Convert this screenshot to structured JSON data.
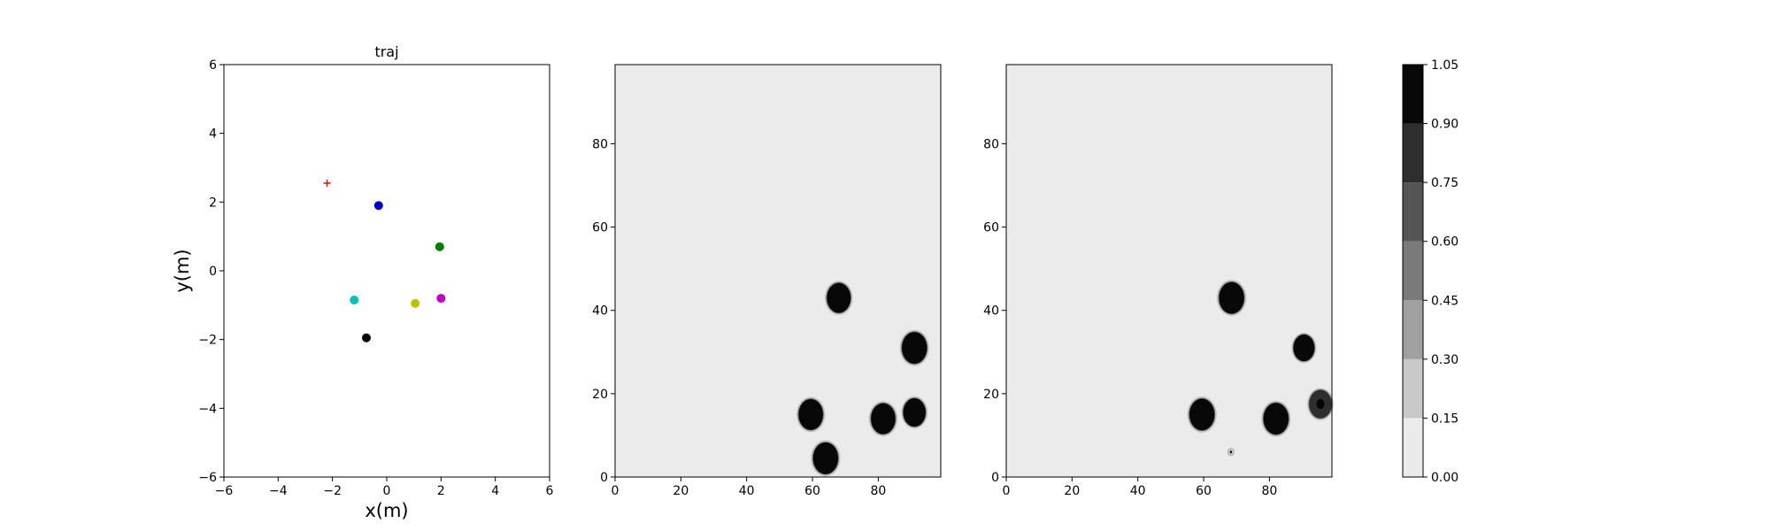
{
  "chart_data": [
    {
      "type": "scatter",
      "title": "traj",
      "xlabel": "x(m)",
      "ylabel": "y(m)",
      "xlim": [
        -6,
        6
      ],
      "ylim": [
        -6,
        6
      ],
      "xticks": [
        "−6",
        "−4",
        "−2",
        "0",
        "2",
        "4",
        "6"
      ],
      "yticks": [
        "−6",
        "−4",
        "−2",
        "0",
        "2",
        "4",
        "6"
      ],
      "grid": false,
      "points": [
        {
          "x": -2.2,
          "y": 2.55,
          "color": "#ff0000",
          "marker": "plus"
        },
        {
          "x": -0.3,
          "y": 1.9,
          "color": "#0000cc",
          "marker": "circle"
        },
        {
          "x": 1.95,
          "y": 0.7,
          "color": "#007f00",
          "marker": "circle"
        },
        {
          "x": -1.2,
          "y": -0.85,
          "color": "#00bfbf",
          "marker": "circle"
        },
        {
          "x": 1.05,
          "y": -0.95,
          "color": "#bfbf00",
          "marker": "circle"
        },
        {
          "x": 2.0,
          "y": -0.8,
          "color": "#bf00bf",
          "marker": "circle"
        },
        {
          "x": -0.75,
          "y": -1.95,
          "color": "#000000",
          "marker": "circle"
        }
      ]
    },
    {
      "type": "heatmap",
      "xlim": [
        0,
        99
      ],
      "ylim": [
        0,
        99
      ],
      "xticks": [
        "0",
        "20",
        "40",
        "60",
        "80"
      ],
      "yticks": [
        "0",
        "20",
        "40",
        "60",
        "80"
      ],
      "background_level": 0.0,
      "blobs": [
        {
          "x": 68,
          "y": 43,
          "r": 3.6,
          "level": 1.0
        },
        {
          "x": 91,
          "y": 31,
          "r": 3.8,
          "level": 1.0
        },
        {
          "x": 59.5,
          "y": 15,
          "r": 3.7,
          "level": 1.0
        },
        {
          "x": 81.5,
          "y": 14,
          "r": 3.7,
          "level": 1.0
        },
        {
          "x": 91,
          "y": 15.5,
          "r": 3.4,
          "level": 1.0
        },
        {
          "x": 64,
          "y": 4.5,
          "r": 3.8,
          "level": 1.0
        }
      ]
    },
    {
      "type": "heatmap",
      "xlim": [
        0,
        99
      ],
      "ylim": [
        0,
        99
      ],
      "xticks": [
        "0",
        "20",
        "40",
        "60",
        "80"
      ],
      "yticks": [
        "0",
        "20",
        "40",
        "60",
        "80"
      ],
      "background_level": 0.0,
      "blobs": [
        {
          "x": 68.5,
          "y": 43,
          "r": 3.8,
          "level": 1.0
        },
        {
          "x": 90.5,
          "y": 31,
          "r": 3.2,
          "level": 1.0
        },
        {
          "x": 59.5,
          "y": 15,
          "r": 3.8,
          "level": 1.0
        },
        {
          "x": 82,
          "y": 14,
          "r": 3.8,
          "level": 1.0
        },
        {
          "x": 95.5,
          "y": 17.5,
          "r": 3.4,
          "level": 0.75
        },
        {
          "x": 68.3,
          "y": 6,
          "r": 0.9,
          "level": 0.2
        }
      ]
    },
    {
      "type": "colorbar",
      "levels": [
        0.0,
        0.15,
        0.3,
        0.45,
        0.6,
        0.75,
        0.9,
        1.05
      ],
      "tick_labels": [
        "0.00",
        "0.15",
        "0.30",
        "0.45",
        "0.60",
        "0.75",
        "0.90",
        "1.05"
      ],
      "colors": [
        "#ebebeb",
        "#c8c8c8",
        "#a0a0a0",
        "#7a7a7a",
        "#555555",
        "#2e2e2e",
        "#080808"
      ]
    }
  ]
}
